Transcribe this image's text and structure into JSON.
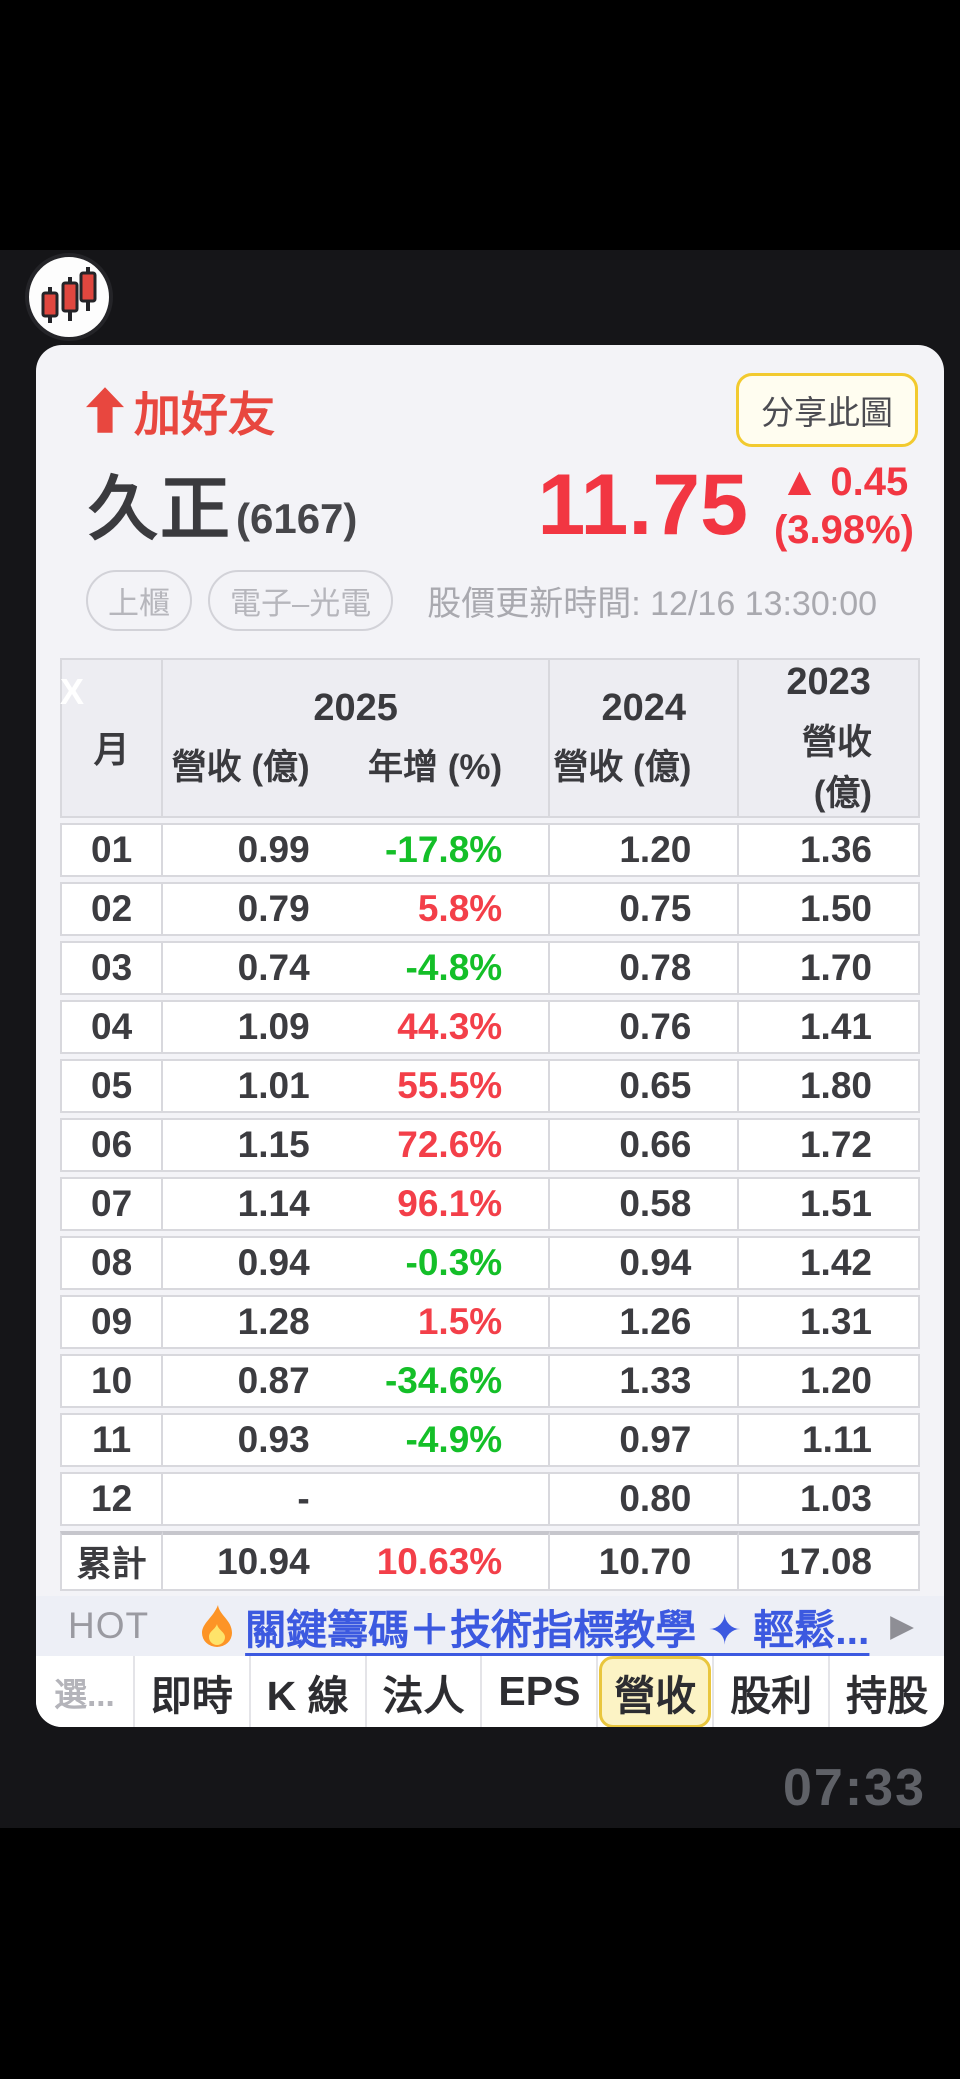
{
  "header": {
    "follow_label": "加好友",
    "share_label": "分享此圖",
    "stock_name": "久正",
    "stock_code": "(6167)",
    "price": "11.75",
    "change_line1": "▲ 0.45",
    "change_line2": "(3.98%)",
    "tag1": "上櫃",
    "tag2": "電子–光電",
    "updated": "股價更新時間: 12/16 13:30:00"
  },
  "table": {
    "watermark": "X",
    "header": {
      "month": "月",
      "y2025": "2025",
      "y2024": "2024",
      "y2023": "2023",
      "revenue_label": "營收 (億)",
      "yoy_label": "年增 (%)"
    },
    "rows": [
      {
        "month": "01",
        "rev": "0.99",
        "yoy": "-17.8%",
        "dir": "down",
        "rev2024": "1.20",
        "rev2023": "1.36"
      },
      {
        "month": "02",
        "rev": "0.79",
        "yoy": "5.8%",
        "dir": "up",
        "rev2024": "0.75",
        "rev2023": "1.50"
      },
      {
        "month": "03",
        "rev": "0.74",
        "yoy": "-4.8%",
        "dir": "down",
        "rev2024": "0.78",
        "rev2023": "1.70"
      },
      {
        "month": "04",
        "rev": "1.09",
        "yoy": "44.3%",
        "dir": "up",
        "rev2024": "0.76",
        "rev2023": "1.41"
      },
      {
        "month": "05",
        "rev": "1.01",
        "yoy": "55.5%",
        "dir": "up",
        "rev2024": "0.65",
        "rev2023": "1.80"
      },
      {
        "month": "06",
        "rev": "1.15",
        "yoy": "72.6%",
        "dir": "up",
        "rev2024": "0.66",
        "rev2023": "1.72"
      },
      {
        "month": "07",
        "rev": "1.14",
        "yoy": "96.1%",
        "dir": "up",
        "rev2024": "0.58",
        "rev2023": "1.51"
      },
      {
        "month": "08",
        "rev": "0.94",
        "yoy": "-0.3%",
        "dir": "down",
        "rev2024": "0.94",
        "rev2023": "1.42"
      },
      {
        "month": "09",
        "rev": "1.28",
        "yoy": "1.5%",
        "dir": "up",
        "rev2024": "1.26",
        "rev2023": "1.31"
      },
      {
        "month": "10",
        "rev": "0.87",
        "yoy": "-34.6%",
        "dir": "down",
        "rev2024": "1.33",
        "rev2023": "1.20"
      },
      {
        "month": "11",
        "rev": "0.93",
        "yoy": "-4.9%",
        "dir": "down",
        "rev2024": "0.97",
        "rev2023": "1.11"
      },
      {
        "month": "12",
        "rev": "-",
        "yoy": "",
        "dir": "",
        "rev2024": "0.80",
        "rev2023": "1.03"
      }
    ],
    "total": {
      "month": "累計",
      "rev": "10.94",
      "yoy": "10.63%",
      "dir": "up",
      "rev2024": "10.70",
      "rev2023": "17.08"
    }
  },
  "hot": {
    "label": "HOT",
    "link_text": "關鍵籌碼＋技術指標教學 ✦ 輕鬆...",
    "chevron": "▶"
  },
  "tabs": {
    "items": [
      {
        "label": "選...",
        "muted": true
      },
      {
        "label": "即時"
      },
      {
        "label": "K 線"
      },
      {
        "label": "法人"
      },
      {
        "label": "EPS"
      },
      {
        "label": "營收",
        "active": true
      },
      {
        "label": "股利"
      },
      {
        "label": "持股"
      }
    ]
  },
  "system": {
    "clock": "07:33"
  },
  "colors": {
    "price_red": "#f23642",
    "up_red": "#f33f49",
    "down_green": "#14bf28",
    "accent_yellow": "#f2ca2f",
    "link_blue": "#3c59e0"
  }
}
